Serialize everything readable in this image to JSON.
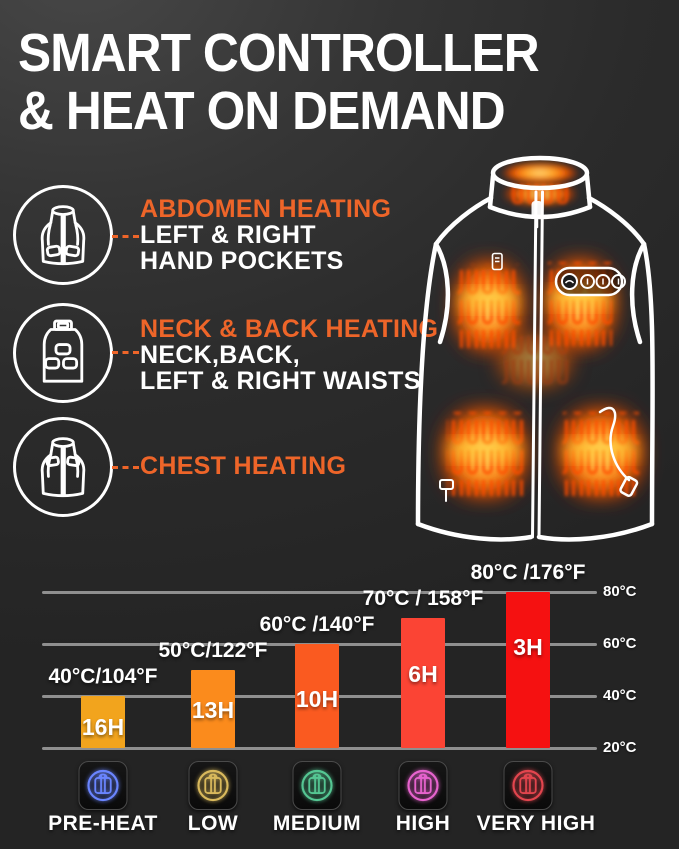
{
  "title": {
    "line1": "SMART CONTROLLER",
    "line2": "& HEAT ON DEMAND"
  },
  "features": [
    {
      "icon": "vest-front-pockets-icon",
      "heading": "ABDOMEN HEATING",
      "line1": "LEFT & RIGHT",
      "line2": "HAND POCKETS"
    },
    {
      "icon": "vest-back-icon",
      "heading": "NECK & BACK HEATING",
      "line1": "NECK,BACK,",
      "line2": "LEFT & RIGHT WAISTS"
    },
    {
      "icon": "vest-chest-icon",
      "heading": "CHEST HEATING",
      "line1": "",
      "line2": ""
    }
  ],
  "chart_data": {
    "type": "bar",
    "title": "",
    "categories": [
      "PRE-HEAT",
      "LOW",
      "MEDIUM",
      "HIGH",
      "VERY HIGH"
    ],
    "series": [
      {
        "name": "temperature_celsius",
        "values": [
          40,
          50,
          60,
          70,
          80
        ]
      },
      {
        "name": "temperature_fahrenheit",
        "values": [
          104,
          122,
          140,
          158,
          176
        ]
      },
      {
        "name": "runtime_hours",
        "values": [
          16,
          13,
          10,
          6,
          3
        ]
      }
    ],
    "bar_top_labels": [
      "40°C/104°F",
      "50°C/122°F",
      "60°C /140°F",
      "70°C / 158°F",
      "80°C /176°F"
    ],
    "bar_inner_labels": [
      "16H",
      "13H",
      "10H",
      "6H",
      "3H"
    ],
    "bar_colors": [
      "#F2A41D",
      "#FB8B1C",
      "#FA5A20",
      "#FB4434",
      "#F51111"
    ],
    "y_tick_labels": [
      "80°C",
      "60°C",
      "40°C",
      "20°C"
    ],
    "y_tick_values": [
      80,
      60,
      40,
      20
    ],
    "ylim": [
      20,
      80
    ],
    "grid": true,
    "legend": "none"
  },
  "levels": [
    {
      "label": "PRE-HEAT",
      "color": "#6A85FF"
    },
    {
      "label": "LOW",
      "color": "#D9B95C"
    },
    {
      "label": "MEDIUM",
      "color": "#55C693"
    },
    {
      "label": "HIGH",
      "color": "#E763CE"
    },
    {
      "label": "VERY HIGH",
      "color": "#E2454E"
    }
  ],
  "colors": {
    "background": "#2D2D2D",
    "accent_orange": "#EE6529",
    "text_white": "#FFFFFF",
    "gridline": "#8F8F8F",
    "heat_glow_core": "#FFD95A",
    "heat_glow_mid": "#FF8A1E",
    "heat_glow_edge": "#E03A00",
    "vest_outline": "#FFFFFF"
  }
}
